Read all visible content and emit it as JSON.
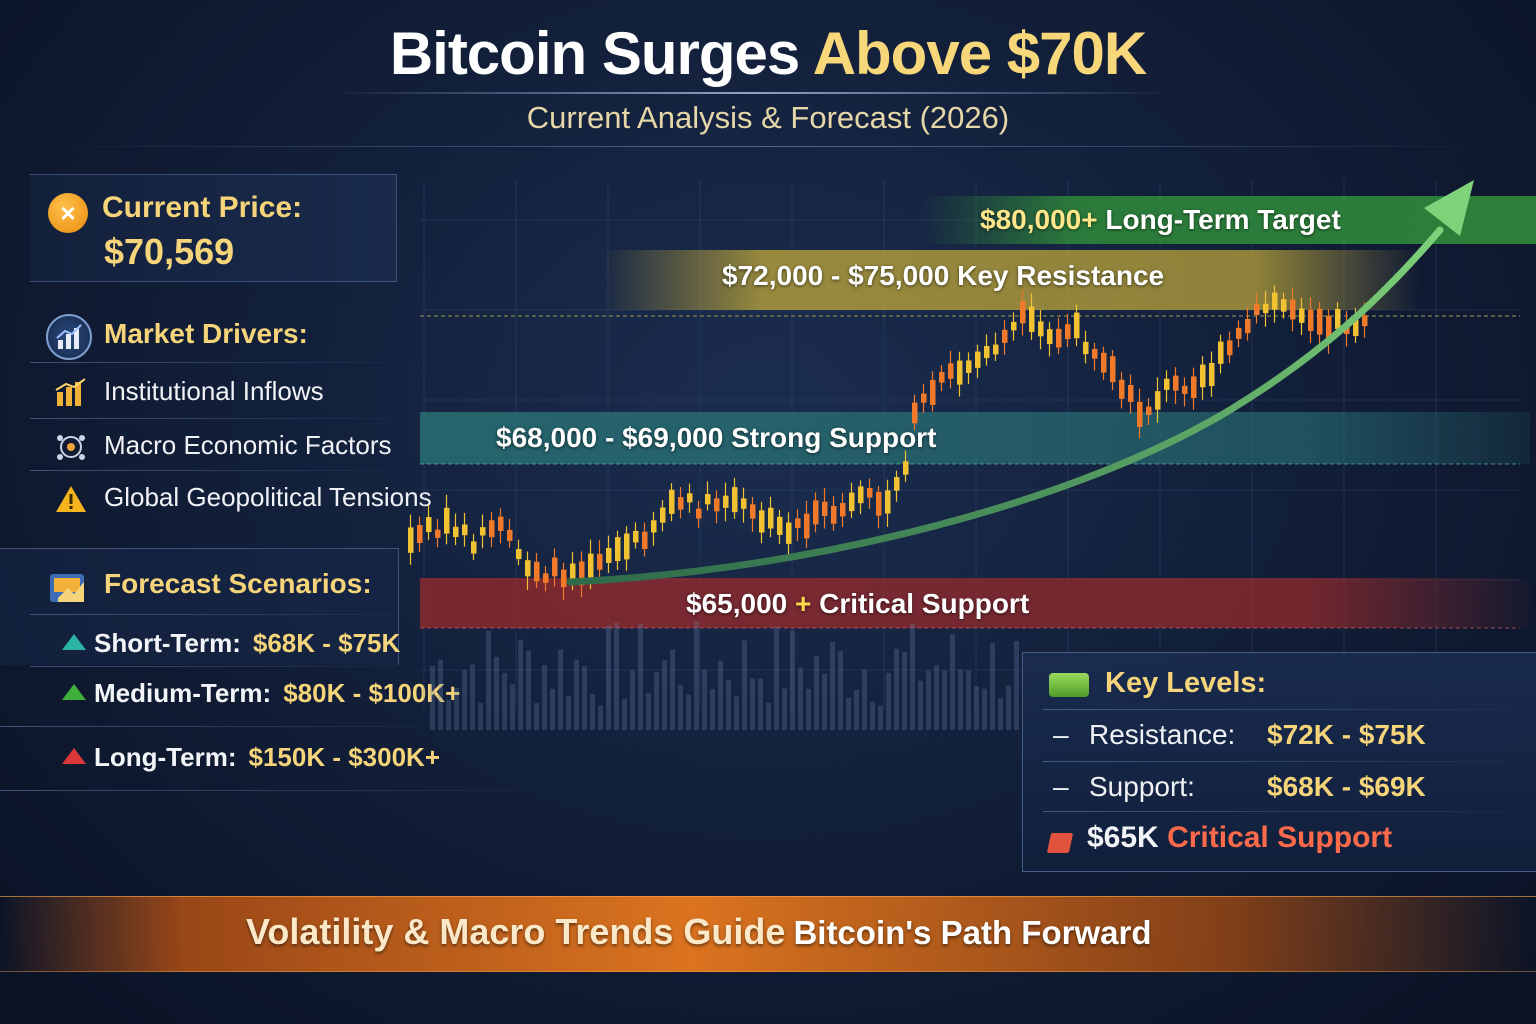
{
  "header": {
    "title_part1": "Bitcoin Surges",
    "title_part2": "Above $70K",
    "subtitle": "Current Analysis & Forecast (2026)"
  },
  "price": {
    "label": "Current Price:",
    "value": "$70,569"
  },
  "drivers": {
    "heading": "Market Drivers:",
    "items": [
      {
        "label": "Institutional Inflows",
        "icon": "bar-chart-icon"
      },
      {
        "label": "Macro Economic Factors",
        "icon": "globe-network-icon"
      },
      {
        "label": "Global Geopolitical Tensions",
        "icon": "warning-icon"
      }
    ]
  },
  "forecast": {
    "heading": "Forecast Scenarios:",
    "items": [
      {
        "term": "Short-Term:",
        "range": "$68K - $75K",
        "color": "#2bb3a6"
      },
      {
        "term": "Medium-Term:",
        "range": "$80K - $100K+",
        "color": "#3fae3a"
      },
      {
        "term": "Long-Term:",
        "range": "$150K - $300K+",
        "color": "#d9383a"
      }
    ]
  },
  "bands": {
    "target": {
      "price": "$80,000+",
      "text": "Long-Term Target"
    },
    "resistance": {
      "price": "$72,000 - $75,000",
      "text": "Key Resistance"
    },
    "support": {
      "price": "$68,000 - $69,000",
      "text": "Strong Support"
    },
    "critical": {
      "price": "$65,000",
      "plus": "+",
      "text": "Critical Support"
    }
  },
  "key_levels": {
    "heading": "Key Levels:",
    "dash": "–",
    "resistance_label": "Resistance:",
    "resistance_value": "$72K - $75K",
    "support_label": "Support:",
    "support_value": "$68K - $69K",
    "critical_price": "$65K",
    "critical_text": "Critical Support"
  },
  "footer": {
    "text_main": "Volatility & Macro Trends Guide",
    "text_end": "Bitcoin's Path Forward"
  },
  "colors": {
    "gold": "#f6d47a",
    "green_band": "#2f8a3a",
    "yellow_band": "#b8a23a",
    "teal_band": "#2b7a7a",
    "red_band": "#9c2a2a"
  }
}
